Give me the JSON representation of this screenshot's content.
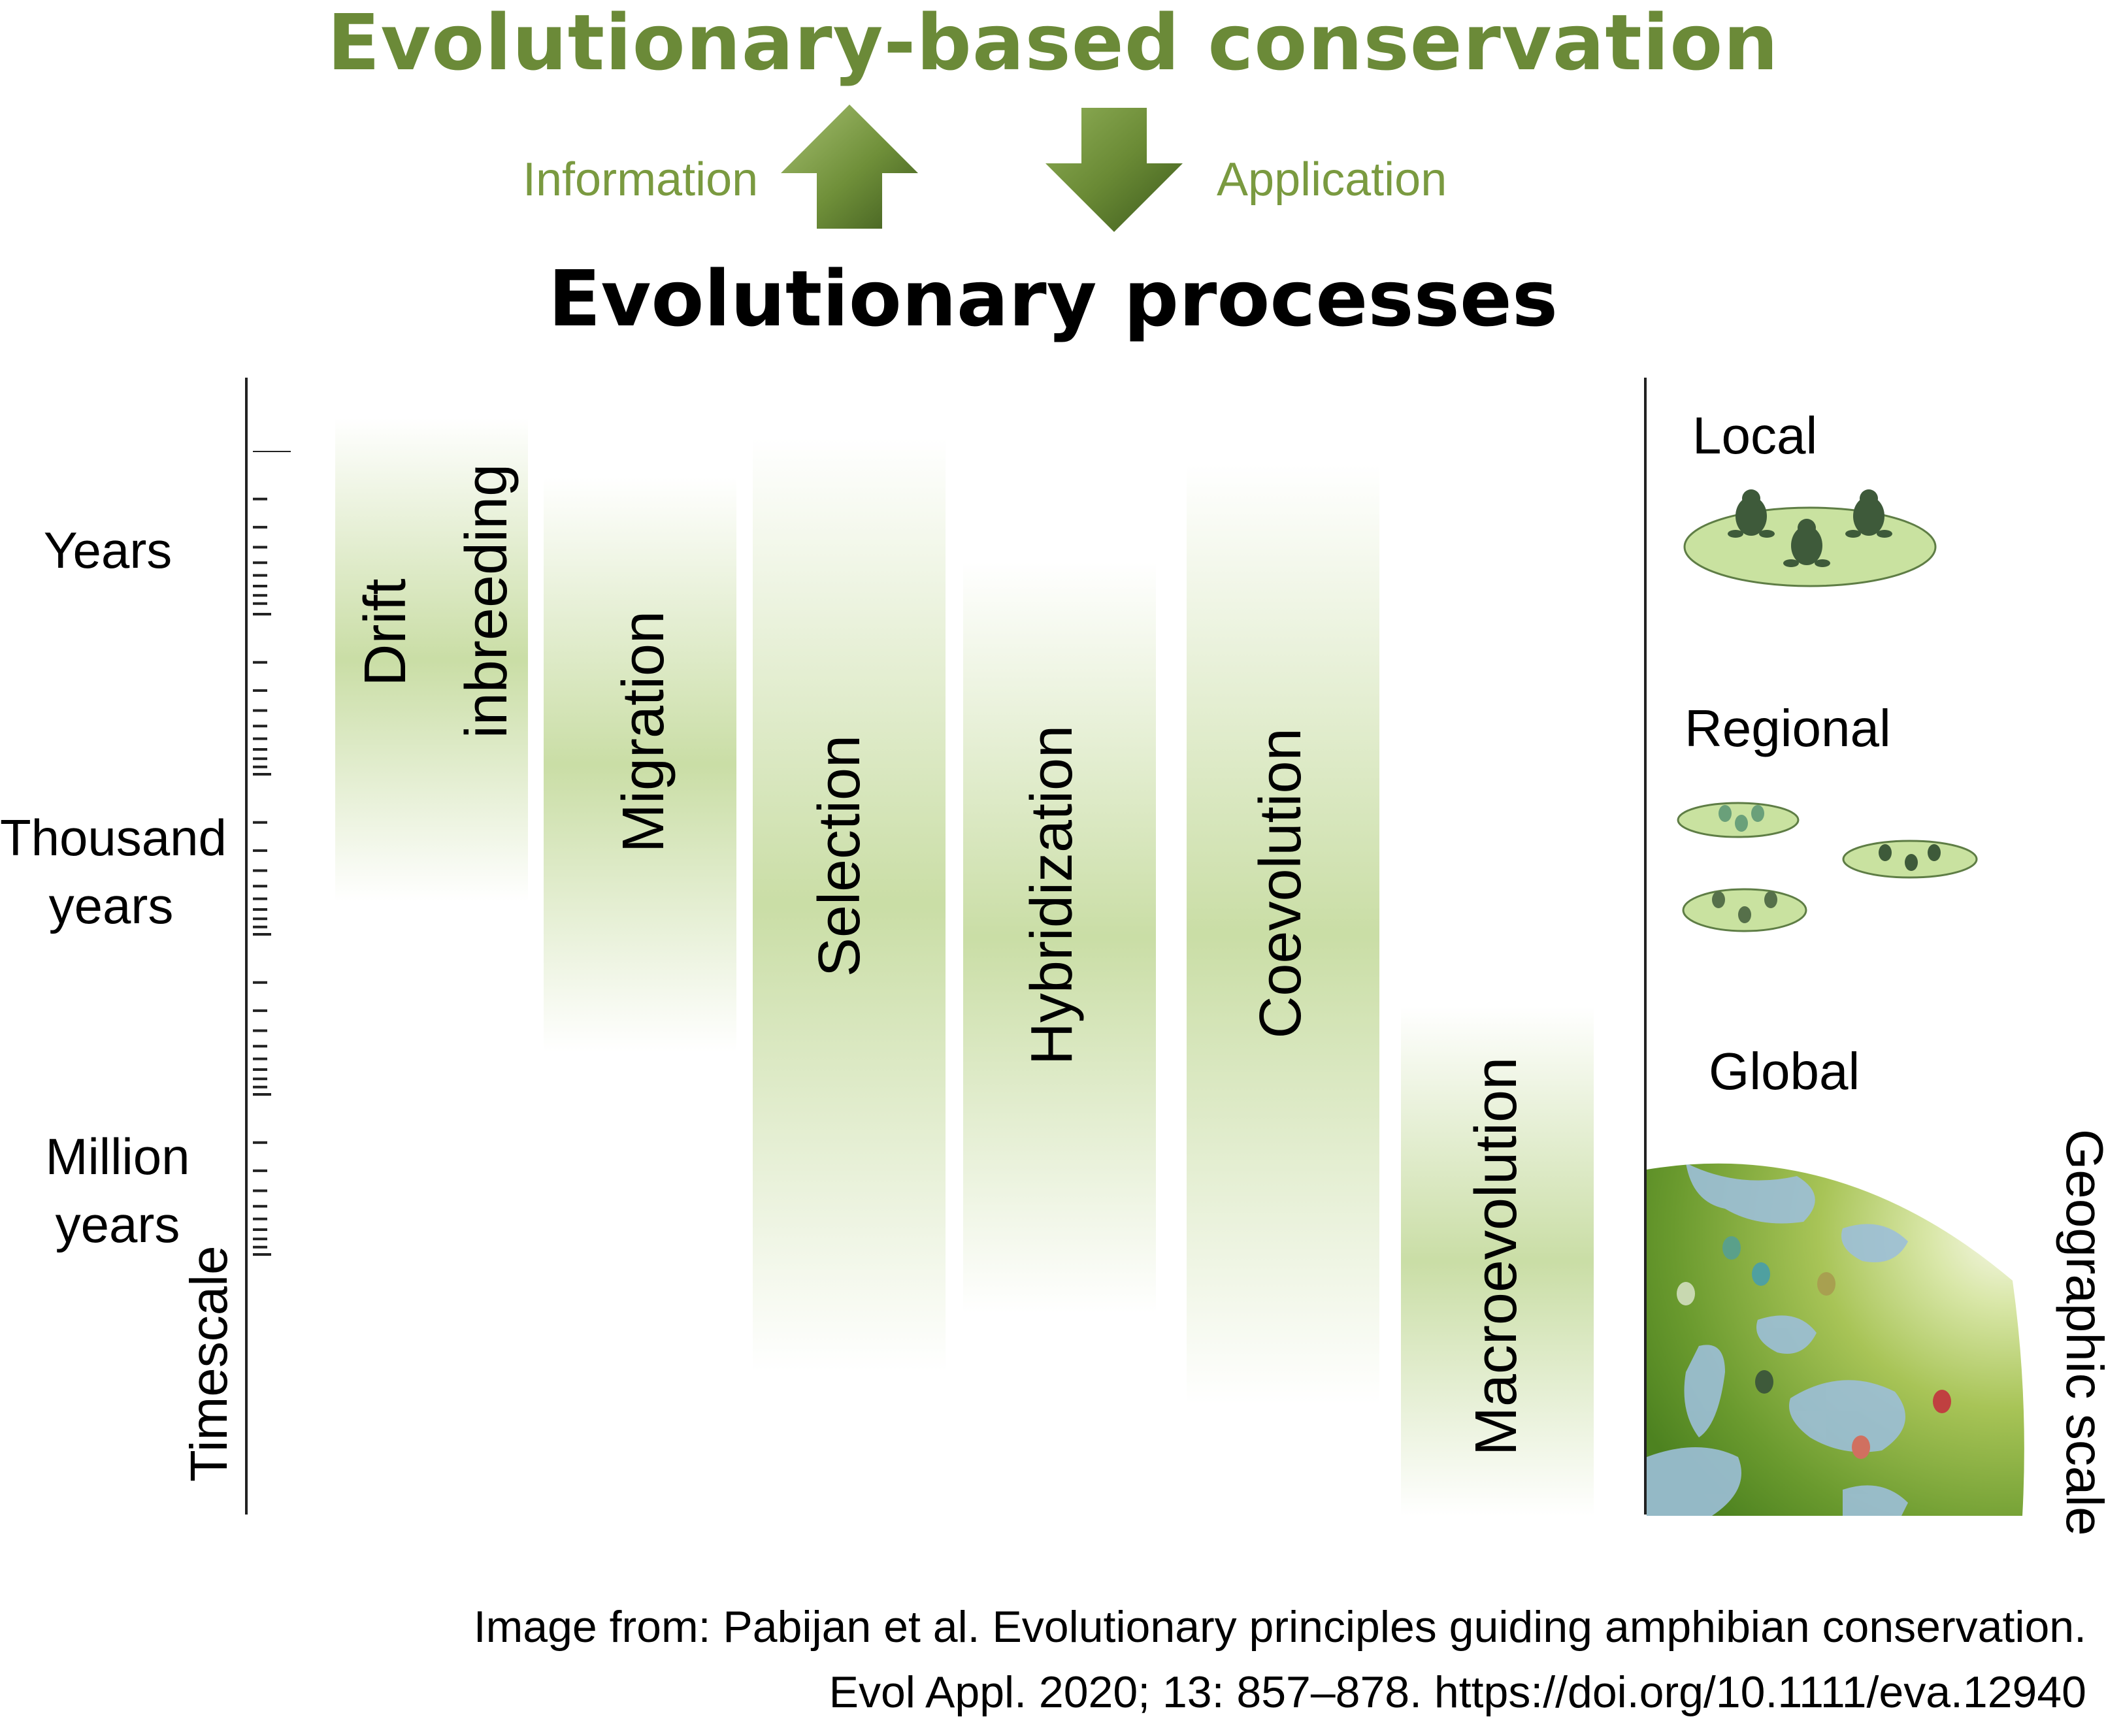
{
  "title": "Evolutionary-based conservation",
  "subtitle": "Evolutionary processes",
  "arrows": {
    "up_label": "Information",
    "down_label": "Application"
  },
  "timescale": {
    "axis_label": "Timescale",
    "levels": [
      {
        "line1": "Years",
        "line2": ""
      },
      {
        "line1": "Thousand",
        "line2": "years"
      },
      {
        "line1": "Million",
        "line2": "years"
      }
    ]
  },
  "processes": [
    {
      "label1": "Drift",
      "label2": "inbreeding"
    },
    {
      "label1": "Migration"
    },
    {
      "label1": "Selection"
    },
    {
      "label1": "Hybridization"
    },
    {
      "label1": "Coevolution"
    },
    {
      "label1": "Macroevolution"
    }
  ],
  "geographic": {
    "axis_label": "Geographic scale",
    "levels": [
      "Local",
      "Regional",
      "Global"
    ]
  },
  "citation": {
    "line1": "Image from: Pabijan et al. Evolutionary principles guiding amphibian conservation.",
    "line2": "Evol Appl. 2020; 13: 857–878. https://doi.org/10.1111/eva.12940"
  },
  "colors": {
    "title_green": "#6b8a38",
    "arrow_green": "#5f7d2e",
    "band_green": "#c4da9c",
    "pond_green": "#c9e2a0",
    "frog_dark": "#3e5a3a"
  },
  "icons": [
    "arrow-up-icon",
    "arrow-down-icon",
    "frog-icon",
    "pond-icon",
    "globe-icon"
  ]
}
